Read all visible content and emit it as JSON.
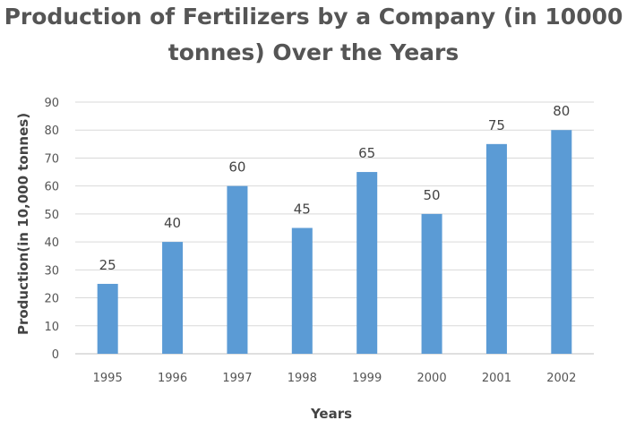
{
  "chart_data": {
    "type": "bar",
    "title_lines": [
      "Production of Fertilizers by a Company (in 10000",
      "tonnes) Over the Years"
    ],
    "xlabel": "Years",
    "ylabel": "Production(in 10,000 tonnes)",
    "categories": [
      "1995",
      "1996",
      "1997",
      "1998",
      "1999",
      "2000",
      "2001",
      "2002"
    ],
    "values": [
      25,
      40,
      60,
      45,
      65,
      50,
      75,
      80
    ],
    "data_labels": [
      "25",
      "40",
      "60",
      "45",
      "65",
      "50",
      "75",
      "80"
    ],
    "ylim": [
      0,
      90
    ],
    "yticks": [
      "0",
      "10",
      "20",
      "30",
      "40",
      "50",
      "60",
      "70",
      "80",
      "90"
    ],
    "grid": "horizontal",
    "legend": "none",
    "colors": {
      "bar": "#5b9bd5",
      "grid": "#d9d9d9",
      "text": "#555555"
    }
  }
}
